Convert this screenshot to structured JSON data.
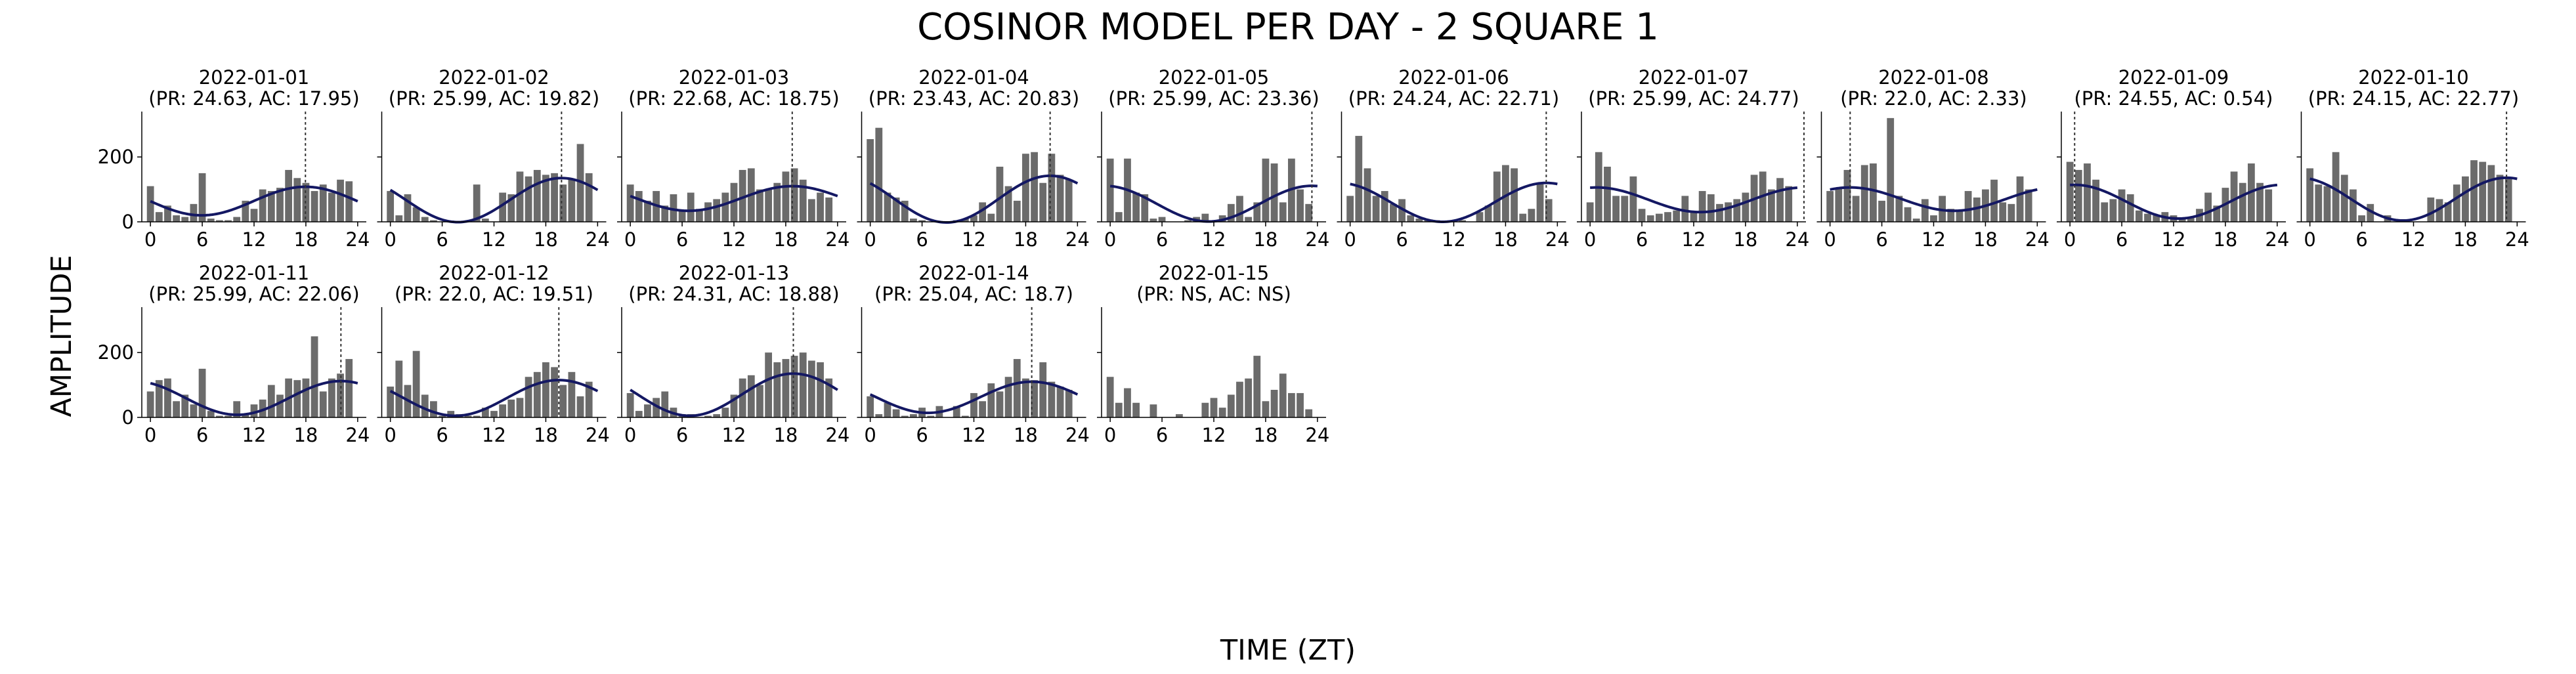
{
  "figure": {
    "title": "COSINOR MODEL PER DAY - 2 SQUARE 1",
    "xlabel": "TIME (ZT)",
    "ylabel": "AMPLITUDE"
  },
  "colors": {
    "bar": "#6b6b6b",
    "fit": "#141863",
    "acrophase_line": "#333333"
  },
  "chart_data": [
    {
      "type": "bar",
      "title": "2022-01-01",
      "subtitle": "(PR: 24.63, AC: 17.95)",
      "xlim": [
        -1,
        25
      ],
      "ylim": [
        0,
        340
      ],
      "xticks": [
        0,
        6,
        12,
        18,
        24
      ],
      "yticks": [
        0,
        200
      ],
      "x": [
        0,
        1,
        2,
        3,
        4,
        5,
        6,
        7,
        8,
        9,
        10,
        11,
        12,
        13,
        14,
        15,
        16,
        17,
        18,
        19,
        20,
        21,
        22,
        23
      ],
      "values": [
        110,
        30,
        50,
        20,
        15,
        55,
        150,
        10,
        5,
        5,
        15,
        65,
        40,
        100,
        95,
        105,
        160,
        135,
        120,
        95,
        115,
        90,
        130,
        125
      ],
      "fit": {
        "mesor": 64,
        "amplitude": 44,
        "acrophase": 17.95
      },
      "show_acrophase": true
    },
    {
      "type": "bar",
      "title": "2022-01-02",
      "subtitle": "(PR: 25.99, AC: 19.82)",
      "xlim": [
        -1,
        25
      ],
      "ylim": [
        0,
        340
      ],
      "xticks": [
        0,
        6,
        12,
        18,
        24
      ],
      "yticks": [
        0,
        200
      ],
      "x": [
        0,
        1,
        2,
        3,
        4,
        5,
        6,
        7,
        8,
        9,
        10,
        11,
        12,
        13,
        14,
        15,
        16,
        17,
        18,
        19,
        20,
        21,
        22,
        23
      ],
      "values": [
        95,
        20,
        85,
        45,
        15,
        5,
        0,
        0,
        0,
        5,
        115,
        10,
        0,
        90,
        85,
        155,
        140,
        160,
        145,
        150,
        115,
        130,
        240,
        150
      ],
      "fit": {
        "mesor": 67,
        "amplitude": 68,
        "acrophase": 19.82
      },
      "show_acrophase": true
    },
    {
      "type": "bar",
      "title": "2022-01-03",
      "subtitle": "(PR: 22.68, AC: 18.75)",
      "xlim": [
        -1,
        25
      ],
      "ylim": [
        0,
        340
      ],
      "xticks": [
        0,
        6,
        12,
        18,
        24
      ],
      "yticks": [
        0,
        200
      ],
      "x": [
        0,
        1,
        2,
        3,
        4,
        5,
        6,
        7,
        8,
        9,
        10,
        11,
        12,
        13,
        14,
        15,
        16,
        17,
        18,
        19,
        20,
        21,
        22,
        23
      ],
      "values": [
        115,
        95,
        65,
        95,
        50,
        85,
        35,
        90,
        40,
        60,
        70,
        90,
        120,
        160,
        165,
        100,
        100,
        120,
        155,
        165,
        130,
        70,
        90,
        75
      ],
      "fit": {
        "mesor": 72,
        "amplitude": 38,
        "acrophase": 18.75
      },
      "show_acrophase": true
    },
    {
      "type": "bar",
      "title": "2022-01-04",
      "subtitle": "(PR: 23.43, AC: 20.83)",
      "xlim": [
        -1,
        25
      ],
      "ylim": [
        0,
        340
      ],
      "xticks": [
        0,
        6,
        12,
        18,
        24
      ],
      "yticks": [
        0,
        200
      ],
      "x": [
        0,
        1,
        2,
        3,
        4,
        5,
        6,
        7,
        8,
        9,
        10,
        11,
        12,
        13,
        14,
        15,
        16,
        17,
        18,
        19,
        20,
        21,
        22,
        23
      ],
      "values": [
        255,
        290,
        90,
        75,
        65,
        10,
        5,
        0,
        0,
        0,
        5,
        10,
        20,
        60,
        25,
        170,
        110,
        65,
        210,
        215,
        120,
        210,
        145,
        130
      ],
      "fit": {
        "mesor": 70,
        "amplitude": 72,
        "acrophase": 20.83
      },
      "show_acrophase": true
    },
    {
      "type": "bar",
      "title": "2022-01-05",
      "subtitle": "(PR: 25.99, AC: 23.36)",
      "xlim": [
        -1,
        25
      ],
      "ylim": [
        0,
        340
      ],
      "xticks": [
        0,
        6,
        12,
        18,
        24
      ],
      "yticks": [
        0,
        200
      ],
      "x": [
        0,
        1,
        2,
        3,
        4,
        5,
        6,
        7,
        8,
        9,
        10,
        11,
        12,
        13,
        14,
        15,
        16,
        17,
        18,
        19,
        20,
        21,
        22,
        23
      ],
      "values": [
        195,
        30,
        195,
        90,
        85,
        10,
        15,
        0,
        0,
        5,
        15,
        25,
        0,
        20,
        55,
        80,
        15,
        60,
        195,
        180,
        60,
        195,
        100,
        55
      ],
      "fit": {
        "mesor": 56,
        "amplitude": 55,
        "acrophase": 23.36
      },
      "show_acrophase": true
    },
    {
      "type": "bar",
      "title": "2022-01-06",
      "subtitle": "(PR: 24.24, AC: 22.71)",
      "xlim": [
        -1,
        25
      ],
      "ylim": [
        0,
        340
      ],
      "xticks": [
        0,
        6,
        12,
        18,
        24
      ],
      "yticks": [
        0,
        200
      ],
      "x": [
        0,
        1,
        2,
        3,
        4,
        5,
        6,
        7,
        8,
        9,
        10,
        11,
        12,
        13,
        14,
        15,
        16,
        17,
        18,
        19,
        20,
        21,
        22,
        23
      ],
      "values": [
        80,
        265,
        165,
        80,
        95,
        55,
        70,
        20,
        10,
        5,
        5,
        0,
        0,
        5,
        0,
        30,
        50,
        155,
        175,
        165,
        25,
        40,
        120,
        70
      ],
      "fit": {
        "mesor": 60,
        "amplitude": 60,
        "acrophase": 22.71
      },
      "show_acrophase": true
    },
    {
      "type": "bar",
      "title": "2022-01-07",
      "subtitle": "(PR: 25.99, AC: 24.77)",
      "xlim": [
        -1,
        25
      ],
      "ylim": [
        0,
        340
      ],
      "xticks": [
        0,
        6,
        12,
        18,
        24
      ],
      "yticks": [
        0,
        200
      ],
      "x": [
        0,
        1,
        2,
        3,
        4,
        5,
        6,
        7,
        8,
        9,
        10,
        11,
        12,
        13,
        14,
        15,
        16,
        17,
        18,
        19,
        20,
        21,
        22,
        23
      ],
      "values": [
        60,
        215,
        170,
        80,
        80,
        140,
        40,
        20,
        25,
        30,
        35,
        80,
        30,
        95,
        85,
        55,
        60,
        70,
        90,
        145,
        155,
        100,
        135,
        110
      ],
      "fit": {
        "mesor": 68,
        "amplitude": 38,
        "acrophase": 24.77
      },
      "show_acrophase": true
    },
    {
      "type": "bar",
      "title": "2022-01-08",
      "subtitle": "(PR: 22.0, AC: 2.33)",
      "xlim": [
        -1,
        25
      ],
      "ylim": [
        0,
        340
      ],
      "xticks": [
        0,
        6,
        12,
        18,
        24
      ],
      "yticks": [
        0,
        200
      ],
      "x": [
        0,
        1,
        2,
        3,
        4,
        5,
        6,
        7,
        8,
        9,
        10,
        11,
        12,
        13,
        14,
        15,
        16,
        17,
        18,
        19,
        20,
        21,
        22,
        23
      ],
      "values": [
        95,
        105,
        160,
        80,
        175,
        180,
        65,
        320,
        80,
        45,
        10,
        70,
        20,
        80,
        40,
        35,
        95,
        75,
        100,
        130,
        60,
        55,
        140,
        100
      ],
      "fit": {
        "mesor": 70,
        "amplitude": 36,
        "acrophase": 2.33
      },
      "show_acrophase": true
    },
    {
      "type": "bar",
      "title": "2022-01-09",
      "subtitle": "(PR: 24.55, AC: 0.54)",
      "xlim": [
        -1,
        25
      ],
      "ylim": [
        0,
        340
      ],
      "xticks": [
        0,
        6,
        12,
        18,
        24
      ],
      "yticks": [
        0,
        200
      ],
      "x": [
        0,
        1,
        2,
        3,
        4,
        5,
        6,
        7,
        8,
        9,
        10,
        11,
        12,
        13,
        14,
        15,
        16,
        17,
        18,
        19,
        20,
        21,
        22,
        23
      ],
      "values": [
        185,
        160,
        180,
        130,
        60,
        70,
        100,
        85,
        35,
        25,
        20,
        30,
        20,
        10,
        15,
        40,
        90,
        50,
        105,
        155,
        120,
        180,
        120,
        100
      ],
      "fit": {
        "mesor": 62,
        "amplitude": 52,
        "acrophase": 0.54
      },
      "show_acrophase": true
    },
    {
      "type": "bar",
      "title": "2022-01-10",
      "subtitle": "(PR: 24.15, AC: 22.77)",
      "xlim": [
        -1,
        25
      ],
      "ylim": [
        0,
        340
      ],
      "xticks": [
        0,
        6,
        12,
        18,
        24
      ],
      "yticks": [
        0,
        200
      ],
      "x": [
        0,
        1,
        2,
        3,
        4,
        5,
        6,
        7,
        8,
        9,
        10,
        11,
        12,
        13,
        14,
        15,
        16,
        17,
        18,
        19,
        20,
        21,
        22,
        23
      ],
      "values": [
        165,
        115,
        110,
        215,
        145,
        100,
        20,
        55,
        0,
        20,
        0,
        5,
        0,
        0,
        75,
        70,
        60,
        115,
        140,
        190,
        185,
        175,
        145,
        135
      ],
      "fit": {
        "mesor": 70,
        "amplitude": 66,
        "acrophase": 22.77
      },
      "show_acrophase": true
    },
    {
      "type": "bar",
      "title": "2022-01-11",
      "subtitle": "(PR: 25.99, AC: 22.06)",
      "xlim": [
        -1,
        25
      ],
      "ylim": [
        0,
        340
      ],
      "xticks": [
        0,
        6,
        12,
        18,
        24
      ],
      "yticks": [
        0,
        200
      ],
      "x": [
        0,
        1,
        2,
        3,
        4,
        5,
        6,
        7,
        8,
        9,
        10,
        11,
        12,
        13,
        14,
        15,
        16,
        17,
        18,
        19,
        20,
        21,
        22,
        23
      ],
      "values": [
        80,
        115,
        120,
        50,
        70,
        40,
        150,
        20,
        5,
        5,
        50,
        10,
        40,
        55,
        100,
        70,
        120,
        115,
        120,
        250,
        80,
        120,
        135,
        180
      ],
      "fit": {
        "mesor": 60,
        "amplitude": 52,
        "acrophase": 22.06
      },
      "show_acrophase": true
    },
    {
      "type": "bar",
      "title": "2022-01-12",
      "subtitle": "(PR: 22.0, AC: 19.51)",
      "xlim": [
        -1,
        25
      ],
      "ylim": [
        0,
        340
      ],
      "xticks": [
        0,
        6,
        12,
        18,
        24
      ],
      "yticks": [
        0,
        200
      ],
      "x": [
        0,
        1,
        2,
        3,
        4,
        5,
        6,
        7,
        8,
        9,
        10,
        11,
        12,
        13,
        14,
        15,
        16,
        17,
        18,
        19,
        20,
        21,
        22,
        23
      ],
      "values": [
        95,
        175,
        100,
        205,
        70,
        50,
        5,
        20,
        10,
        5,
        5,
        30,
        20,
        40,
        55,
        60,
        125,
        140,
        170,
        155,
        100,
        140,
        65,
        110
      ],
      "fit": {
        "mesor": 60,
        "amplitude": 55,
        "acrophase": 19.51
      },
      "show_acrophase": true
    },
    {
      "type": "bar",
      "title": "2022-01-13",
      "subtitle": "(PR: 24.31, AC: 18.88)",
      "xlim": [
        -1,
        25
      ],
      "ylim": [
        0,
        340
      ],
      "xticks": [
        0,
        6,
        12,
        18,
        24
      ],
      "yticks": [
        0,
        200
      ],
      "x": [
        0,
        1,
        2,
        3,
        4,
        5,
        6,
        7,
        8,
        9,
        10,
        11,
        12,
        13,
        14,
        15,
        16,
        17,
        18,
        19,
        20,
        21,
        22,
        23
      ],
      "values": [
        75,
        20,
        40,
        60,
        80,
        30,
        10,
        10,
        0,
        5,
        10,
        30,
        70,
        120,
        130,
        100,
        200,
        170,
        180,
        190,
        200,
        175,
        170,
        120
      ],
      "fit": {
        "mesor": 70,
        "amplitude": 65,
        "acrophase": 18.88
      },
      "show_acrophase": true
    },
    {
      "type": "bar",
      "title": "2022-01-14",
      "subtitle": "(PR: 25.04, AC: 18.7)",
      "xlim": [
        -1,
        25
      ],
      "ylim": [
        0,
        340
      ],
      "xticks": [
        0,
        6,
        12,
        18,
        24
      ],
      "yticks": [
        0,
        200
      ],
      "x": [
        0,
        1,
        2,
        3,
        4,
        5,
        6,
        7,
        8,
        9,
        10,
        11,
        12,
        13,
        14,
        15,
        16,
        17,
        18,
        19,
        20,
        21,
        22,
        23
      ],
      "values": [
        65,
        10,
        45,
        25,
        5,
        10,
        30,
        5,
        35,
        0,
        35,
        5,
        75,
        50,
        105,
        80,
        125,
        180,
        120,
        115,
        170,
        110,
        95,
        85
      ],
      "fit": {
        "mesor": 62,
        "amplitude": 48,
        "acrophase": 18.7
      },
      "show_acrophase": true
    },
    {
      "type": "bar",
      "title": "2022-01-15",
      "subtitle": "(PR: NS, AC: NS)",
      "xlim": [
        -1,
        25
      ],
      "ylim": [
        0,
        340
      ],
      "xticks": [
        0,
        6,
        12,
        18,
        24
      ],
      "yticks": [
        0,
        200
      ],
      "x": [
        0,
        1,
        2,
        3,
        4,
        5,
        6,
        7,
        8,
        9,
        10,
        11,
        12,
        13,
        14,
        15,
        16,
        17,
        18,
        19,
        20,
        21,
        22,
        23
      ],
      "values": [
        125,
        45,
        90,
        45,
        0,
        40,
        0,
        0,
        10,
        0,
        0,
        45,
        60,
        30,
        70,
        110,
        120,
        190,
        50,
        85,
        135,
        75,
        75,
        25
      ],
      "fit": null,
      "show_acrophase": false
    }
  ]
}
